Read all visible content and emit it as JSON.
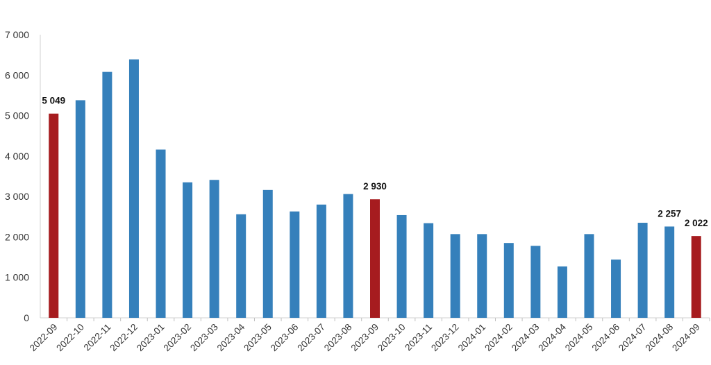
{
  "chart_data": {
    "type": "bar",
    "title": "",
    "xlabel": "",
    "ylabel": "",
    "ylim": [
      0,
      7000
    ],
    "y_ticks": [
      0,
      1000,
      2000,
      3000,
      4000,
      5000,
      6000,
      7000
    ],
    "y_tick_labels": [
      "0",
      "1 000",
      "2 000",
      "3 000",
      "4 000",
      "5 000",
      "6 000",
      "7 000"
    ],
    "grid": false,
    "legend": "none",
    "categories": [
      "2022-09",
      "2022-10",
      "2022-11",
      "2022-12",
      "2023-01",
      "2023-02",
      "2023-03",
      "2023-04",
      "2023-05",
      "2023-06",
      "2023-07",
      "2023-08",
      "2023-09",
      "2023-10",
      "2023-11",
      "2023-12",
      "2024-01",
      "2024-02",
      "2024-03",
      "2024-04",
      "2024-05",
      "2024-06",
      "2024-07",
      "2024-08",
      "2024-09"
    ],
    "values": [
      5049,
      5380,
      6080,
      6390,
      4160,
      3350,
      3410,
      2560,
      3160,
      2630,
      2800,
      3060,
      2930,
      2540,
      2340,
      2070,
      2070,
      1850,
      1780,
      1270,
      2070,
      1440,
      2350,
      2257,
      2022
    ],
    "highlight_indices": [
      0,
      12,
      24
    ],
    "data_labels": [
      {
        "index": 0,
        "text": "5 049"
      },
      {
        "index": 12,
        "text": "2 930"
      },
      {
        "index": 23,
        "text": "2 257"
      },
      {
        "index": 24,
        "text": "2 022"
      }
    ],
    "colors": {
      "bar": "#3580BB",
      "highlight": "#A61C1F",
      "axis": "#D0D0D0",
      "text": "#333333"
    }
  }
}
